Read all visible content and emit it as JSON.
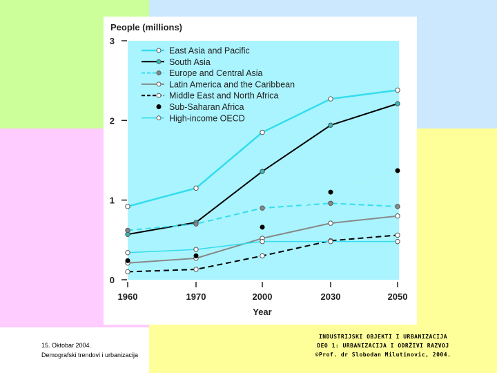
{
  "chart_data": {
    "type": "line",
    "ylabel": "People (millions)",
    "xlabel": "Year",
    "categories": [
      "1960",
      "1970",
      "2000",
      "2030",
      "2050"
    ],
    "x": [
      1960,
      1970,
      2000,
      2030,
      2050
    ],
    "ylim": [
      0,
      3
    ],
    "yticks": [
      0,
      1,
      2,
      3
    ],
    "grid": false,
    "legend_position": "top",
    "series": [
      {
        "name": "East Asia and Pacific",
        "values": [
          0.92,
          1.15,
          1.85,
          2.27,
          2.38
        ],
        "color": "#33ddee",
        "dash": "solid",
        "marker": "circle-open",
        "width": 2.5
      },
      {
        "name": "South Asia",
        "values": [
          0.57,
          0.72,
          1.36,
          1.94,
          2.21
        ],
        "color": "#000000",
        "dash": "solid",
        "marker": "circle-teal",
        "width": 2
      },
      {
        "name": "Europe and Central Asia",
        "values": [
          0.62,
          0.7,
          0.9,
          0.96,
          0.92
        ],
        "color": "#33ddee",
        "dash": "dash",
        "marker": "circle-gray",
        "width": 2
      },
      {
        "name": "Latin America and the Caribbean",
        "values": [
          0.21,
          0.27,
          0.52,
          0.71,
          0.8
        ],
        "color": "#888888",
        "dash": "solid",
        "marker": "circle-open",
        "width": 2
      },
      {
        "name": "Middle East and North Africa",
        "values": [
          0.1,
          0.13,
          0.3,
          0.49,
          0.56
        ],
        "color": "#000000",
        "dash": "dash",
        "marker": "circle-open",
        "width": 2
      },
      {
        "name": "Sub-Saharan Africa",
        "values": [
          0.24,
          0.3,
          0.66,
          1.1,
          1.37
        ],
        "color": "#aaf4f8",
        "dash": "solid",
        "marker": "dot-black",
        "width": 2
      },
      {
        "name": "High-income OECD",
        "values": [
          0.34,
          0.38,
          0.48,
          0.48,
          0.48
        ],
        "color": "#33ddee",
        "dash": "solid",
        "marker": "circle-open",
        "width": 1.5
      }
    ]
  },
  "footer": {
    "date": "15. Oktobar 2004.",
    "subtitle": "Demografski trendovi i urbanizacija",
    "course_line1": "INDUSTRIJSKI OBJEKTI I URBANIZACIJA",
    "course_line2": "DEO 1: URBANIZACIJA I ODRŽIVI RAZVOJ",
    "course_line3": "©Prof. dr Slobodan Milutinovic, 2004."
  }
}
